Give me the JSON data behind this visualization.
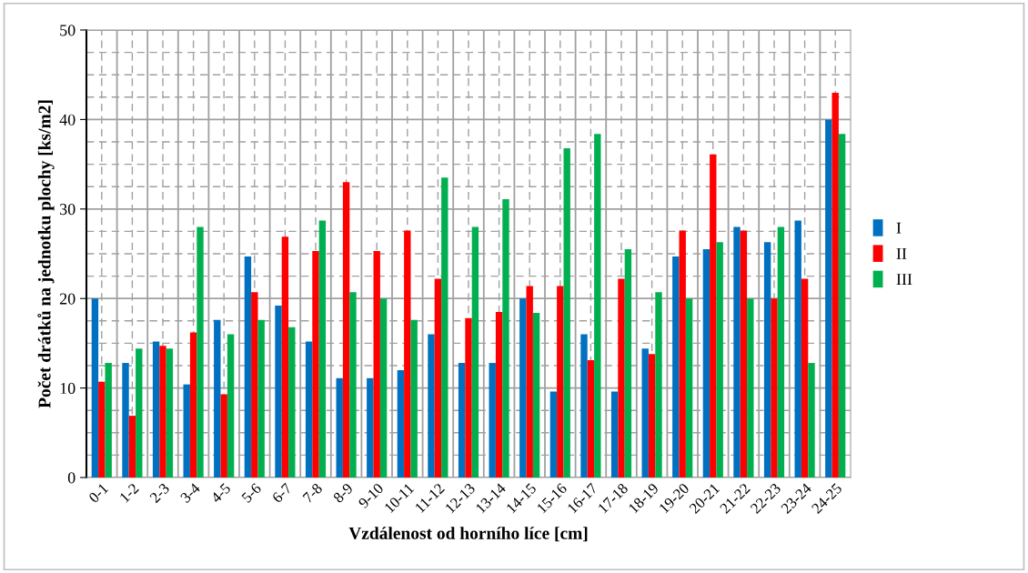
{
  "chart_data": {
    "type": "bar",
    "xlabel": "Vzdálenost od horního líce [cm]",
    "ylabel": "Počet drátků na jednotku plochy [ks/m2]",
    "categories": [
      "0-1",
      "1-2",
      "2-3",
      "3-4",
      "4-5",
      "5-6",
      "6-7",
      "7-8",
      "8-9",
      "9-10",
      "10-11",
      "11-12",
      "12-13",
      "13-14",
      "14-15",
      "15-16",
      "16-17",
      "17-18",
      "18-19",
      "19-20",
      "20-21",
      "21-22",
      "22-23",
      "23-24",
      "24-25"
    ],
    "series": [
      {
        "name": "I",
        "color": "#0070c0",
        "values": [
          20,
          12.8,
          15.2,
          10.4,
          17.6,
          24.7,
          19.2,
          15.2,
          11.1,
          11.1,
          12,
          16,
          12.8,
          12.8,
          20,
          9.6,
          16,
          9.6,
          14.4,
          24.7,
          25.5,
          28,
          26.3,
          28.7,
          40
        ]
      },
      {
        "name": "II",
        "color": "#ff0000",
        "values": [
          10.7,
          6.9,
          14.7,
          16.2,
          9.3,
          20.7,
          26.9,
          25.3,
          33,
          25.3,
          27.6,
          22.2,
          17.8,
          18.5,
          21.4,
          21.4,
          13.1,
          22.2,
          13.8,
          27.6,
          36.1,
          27.6,
          20,
          22.2,
          43
        ]
      },
      {
        "name": "III",
        "color": "#00b050",
        "values": [
          12.8,
          14.4,
          14.4,
          28,
          16,
          17.6,
          16.8,
          28.7,
          20.7,
          20,
          17.6,
          33.5,
          28,
          31.1,
          18.4,
          36.8,
          38.4,
          25.5,
          20.7,
          20,
          26.3,
          20,
          28,
          12.8,
          38.4
        ]
      }
    ],
    "ylim": [
      0,
      50
    ],
    "yticks": [
      0,
      10,
      20,
      30,
      40,
      50
    ],
    "grid": true,
    "legend": "right"
  }
}
